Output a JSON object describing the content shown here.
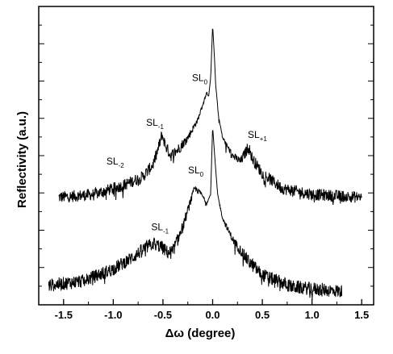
{
  "chart_data": {
    "type": "line",
    "xlabel": "Δω (degree)",
    "ylabel": "Reflectivity (a.u.)",
    "xlim": [
      -1.75,
      1.62
    ],
    "ylim": [
      0,
      1
    ],
    "x_ticks": [
      "-1.5",
      "-1.0",
      "-0.5",
      "0.0",
      "0.5",
      "1.0",
      "1.5"
    ],
    "y_ticks_labeled": false,
    "grid": false,
    "noise_amplitude_lower": 0.045,
    "noise_amplitude_upper": 0.04,
    "series": [
      {
        "role": "upper",
        "x_range": [
          -1.55,
          1.5
        ],
        "points": [
          [
            -1.55,
            0.36
          ],
          [
            -1.2,
            0.37
          ],
          [
            -0.9,
            0.4
          ],
          [
            -0.7,
            0.43
          ],
          [
            -0.6,
            0.47
          ],
          [
            -0.55,
            0.52
          ],
          [
            -0.51,
            0.57
          ],
          [
            -0.47,
            0.53
          ],
          [
            -0.42,
            0.5
          ],
          [
            -0.35,
            0.52
          ],
          [
            -0.25,
            0.56
          ],
          [
            -0.15,
            0.62
          ],
          [
            -0.09,
            0.68
          ],
          [
            -0.06,
            0.71
          ],
          [
            -0.04,
            0.7
          ],
          [
            -0.02,
            0.76
          ],
          [
            0.0,
            0.935
          ],
          [
            0.015,
            0.85
          ],
          [
            0.03,
            0.74
          ],
          [
            0.06,
            0.63
          ],
          [
            0.1,
            0.56
          ],
          [
            0.2,
            0.5
          ],
          [
            0.28,
            0.48
          ],
          [
            0.33,
            0.51
          ],
          [
            0.36,
            0.53
          ],
          [
            0.4,
            0.49
          ],
          [
            0.5,
            0.44
          ],
          [
            0.7,
            0.39
          ],
          [
            1.0,
            0.37
          ],
          [
            1.5,
            0.36
          ]
        ]
      },
      {
        "role": "lower",
        "x_range": [
          -1.65,
          1.3
        ],
        "points": [
          [
            -1.65,
            0.065
          ],
          [
            -1.3,
            0.08
          ],
          [
            -1.0,
            0.12
          ],
          [
            -0.8,
            0.16
          ],
          [
            -0.68,
            0.19
          ],
          [
            -0.6,
            0.205
          ],
          [
            -0.52,
            0.195
          ],
          [
            -0.45,
            0.175
          ],
          [
            -0.4,
            0.18
          ],
          [
            -0.3,
            0.26
          ],
          [
            -0.22,
            0.35
          ],
          [
            -0.18,
            0.39
          ],
          [
            -0.12,
            0.375
          ],
          [
            -0.06,
            0.34
          ],
          [
            -0.02,
            0.37
          ],
          [
            0.0,
            0.595
          ],
          [
            0.02,
            0.5
          ],
          [
            0.05,
            0.37
          ],
          [
            0.1,
            0.29
          ],
          [
            0.2,
            0.22
          ],
          [
            0.35,
            0.15
          ],
          [
            0.5,
            0.1
          ],
          [
            0.8,
            0.06
          ],
          [
            1.3,
            0.045
          ]
        ]
      }
    ],
    "annotations": [
      {
        "text": "SL",
        "sub": "0",
        "x": -0.13,
        "y": 0.75
      },
      {
        "text": "SL",
        "sub": "-1",
        "x": -0.58,
        "y": 0.6
      },
      {
        "text": "SL",
        "sub": "-2",
        "x": -0.98,
        "y": 0.47
      },
      {
        "text": "SL",
        "sub": "+1",
        "x": 0.45,
        "y": 0.56
      },
      {
        "text": "SL",
        "sub": "0",
        "x": -0.17,
        "y": 0.44
      },
      {
        "text": "SL",
        "sub": "-1",
        "x": -0.53,
        "y": 0.25
      }
    ]
  }
}
